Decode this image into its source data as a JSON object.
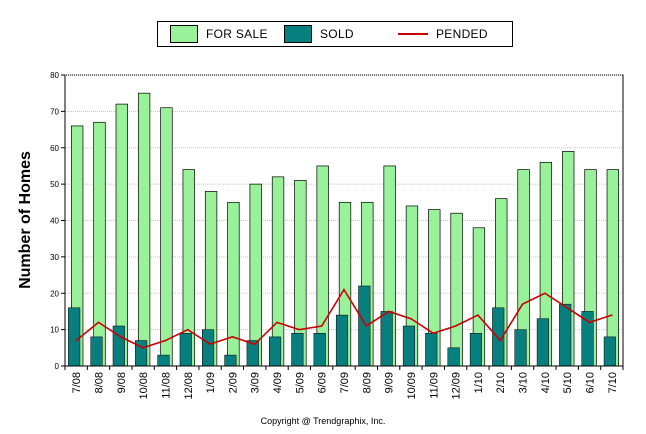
{
  "chart_data": {
    "type": "bar",
    "categories": [
      "7/08",
      "8/08",
      "9/08",
      "10/08",
      "11/08",
      "12/08",
      "1/09",
      "2/09",
      "3/09",
      "4/09",
      "5/09",
      "6/09",
      "7/09",
      "8/09",
      "9/09",
      "10/09",
      "11/09",
      "12/09",
      "1/10",
      "2/10",
      "3/10",
      "4/10",
      "5/10",
      "6/10",
      "7/10"
    ],
    "series": [
      {
        "name": "FOR SALE",
        "kind": "bar",
        "color": "#99f299",
        "values": [
          66,
          67,
          72,
          75,
          71,
          54,
          48,
          45,
          50,
          52,
          51,
          55,
          45,
          45,
          55,
          44,
          43,
          42,
          38,
          46,
          54,
          56,
          59,
          54,
          54
        ]
      },
      {
        "name": "SOLD",
        "kind": "bar",
        "color": "#087f7f",
        "values": [
          16,
          8,
          11,
          7,
          3,
          9,
          10,
          3,
          7,
          8,
          9,
          9,
          14,
          22,
          15,
          11,
          9,
          5,
          9,
          16,
          10,
          13,
          17,
          15,
          8
        ]
      },
      {
        "name": "PENDED",
        "kind": "line",
        "color": "#cc0000",
        "values": [
          7,
          12,
          8,
          5,
          7,
          10,
          6,
          8,
          6,
          12,
          10,
          11,
          21,
          11,
          15,
          13,
          9,
          11,
          14,
          7,
          17,
          20,
          16,
          12,
          14
        ]
      }
    ],
    "ylabel": "Number of Homes",
    "xlabel": "",
    "ylim": [
      0,
      80
    ],
    "yticks": [
      0,
      10,
      20,
      30,
      40,
      50,
      60,
      70,
      80
    ],
    "legend_position": "top-center"
  },
  "footer": {
    "copyright": "Copyright @ Trendgraphix, Inc."
  }
}
